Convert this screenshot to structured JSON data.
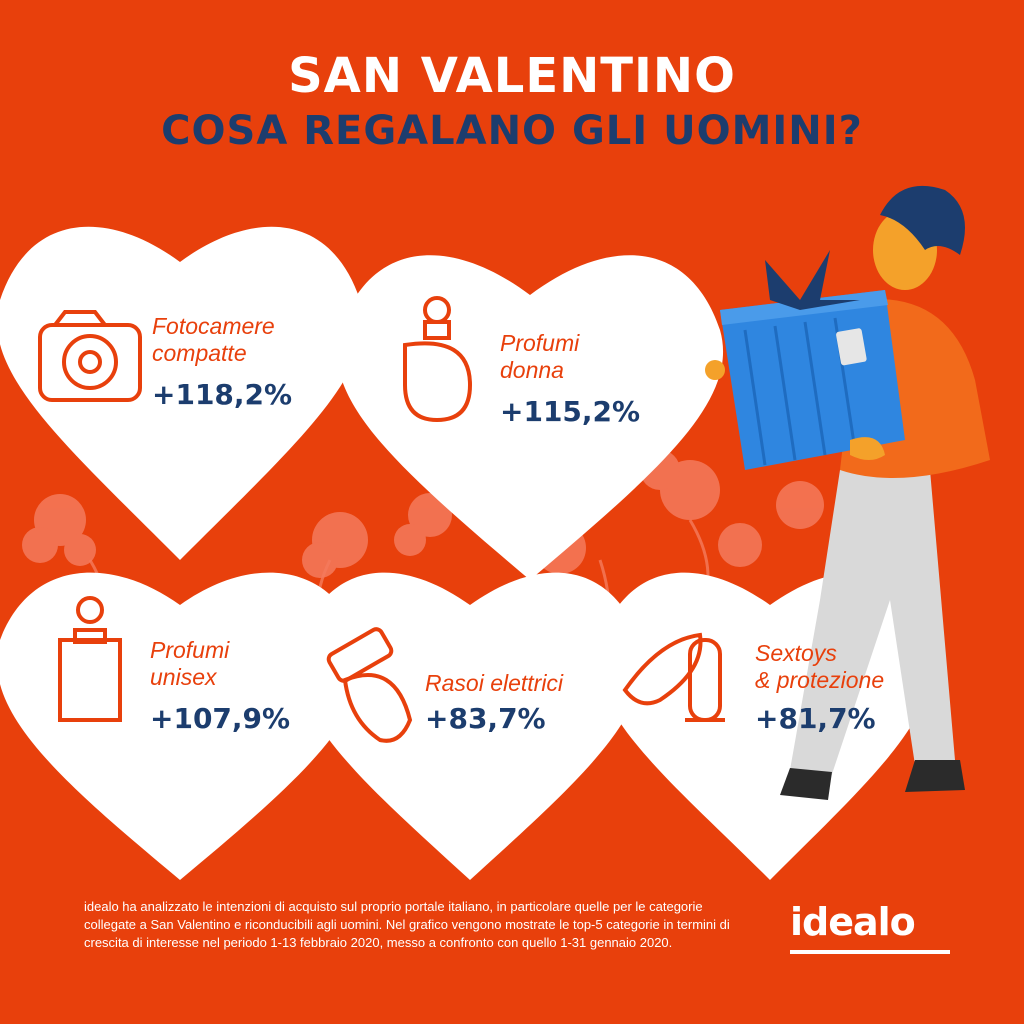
{
  "header": {
    "title": "SAN VALENTINO",
    "subtitle": "COSA REGALANO GLI UOMINI?"
  },
  "cards": [
    {
      "label_line1": "Fotocamere",
      "label_line2": "compatte",
      "value": "+118,2%",
      "icon": "camera-icon"
    },
    {
      "label_line1": "Profumi",
      "label_line2": "donna",
      "value": "+115,2%",
      "icon": "perfume-bottle-icon"
    },
    {
      "label_line1": "Profumi",
      "label_line2": "unisex",
      "value": "+107,9%",
      "icon": "unisex-perfume-icon"
    },
    {
      "label_line1": "Rasoi elettrici",
      "label_line2": "",
      "value": "+83,7%",
      "icon": "electric-razor-icon"
    },
    {
      "label_line1": "Sextoys",
      "label_line2": "& protezione",
      "value": "+81,7%",
      "icon": "mask-condom-icon"
    }
  ],
  "footer": {
    "text": "idealo ha analizzato le intenzioni di acquisto sul proprio portale italiano, in particolare quelle per le categorie collegate a San Valentino e riconducibili agli uomini. Nel grafico vengono mostrate le top-5 categorie in termini di crescita di interesse nel periodo 1-13 febbraio 2020, messo a confronto con quello 1-31 gennaio 2020."
  },
  "logo": {
    "text": "idealo"
  },
  "colors": {
    "background": "#E8400C",
    "navy": "#1C3D6E",
    "heart": "#FFFFFF",
    "gift": "#2F86E0",
    "flower": "#F47A5C"
  }
}
